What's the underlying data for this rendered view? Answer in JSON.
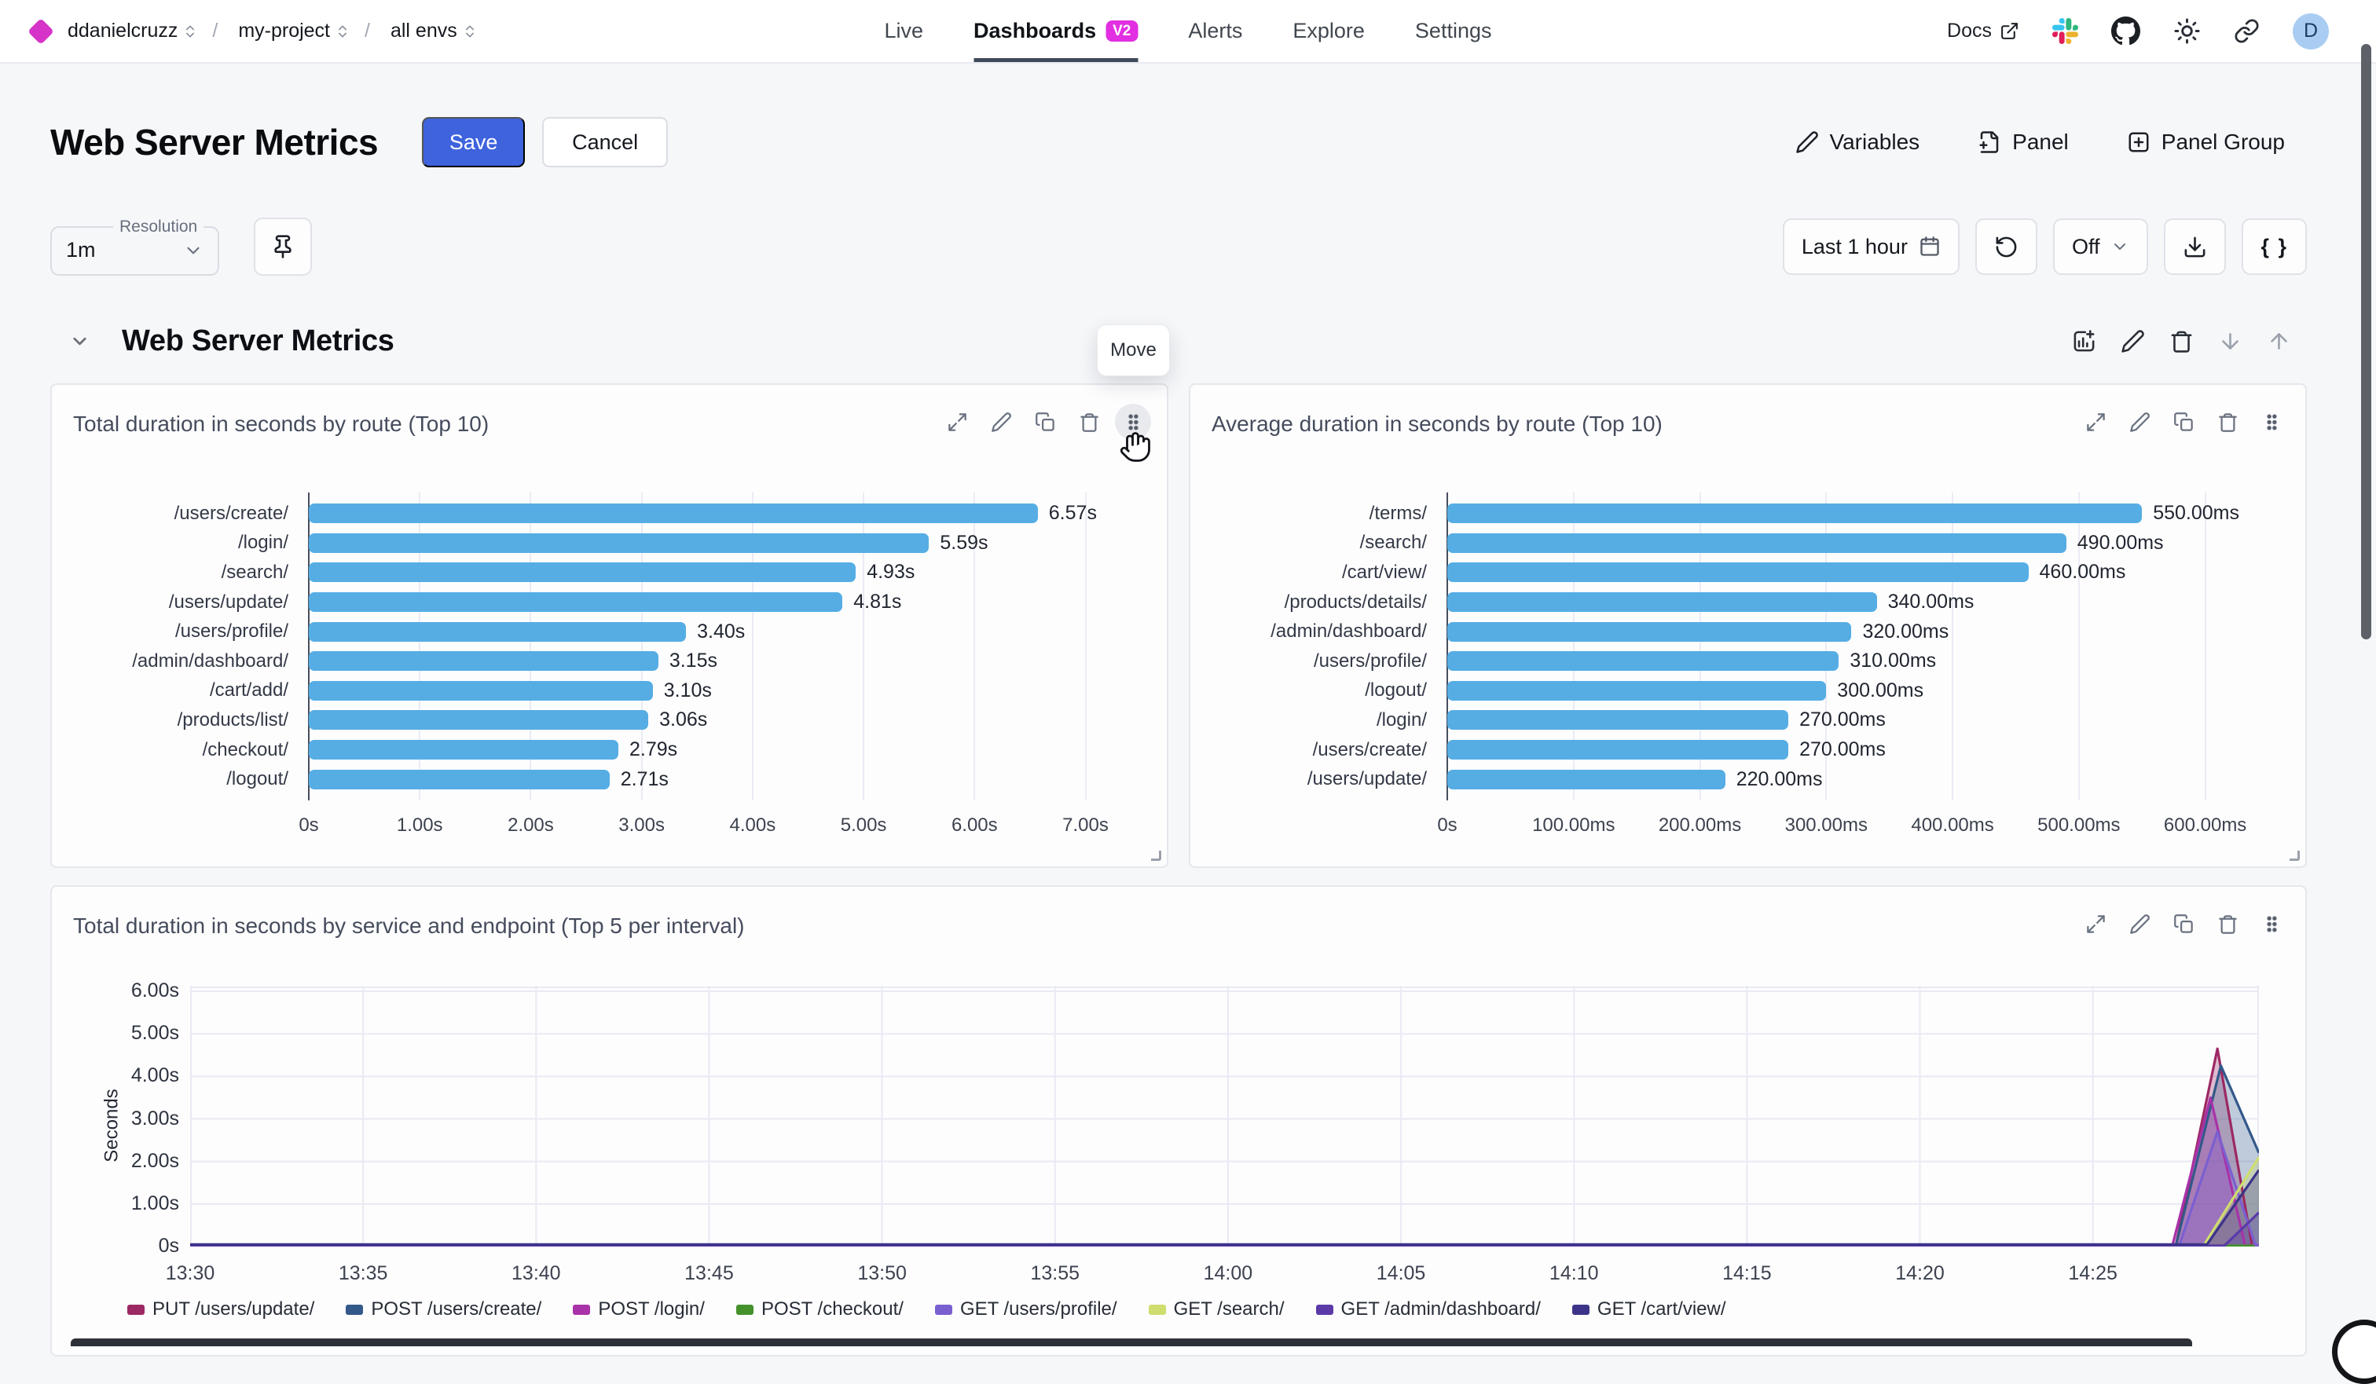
{
  "topbar": {
    "logo_color": "#D633C8",
    "breadcrumb": [
      {
        "label": "ddanielcruzz"
      },
      {
        "label": "my-project"
      },
      {
        "label": "all envs"
      }
    ],
    "nav": [
      {
        "label": "Live"
      },
      {
        "label": "Dashboards",
        "badge": "V2",
        "active": true
      },
      {
        "label": "Alerts"
      },
      {
        "label": "Explore"
      },
      {
        "label": "Settings"
      }
    ],
    "docs_label": "Docs",
    "icons": [
      "external-link-icon",
      "slack-icon",
      "github-icon",
      "brightness-icon",
      "link-icon"
    ],
    "avatar_initial": "D"
  },
  "header": {
    "title": "Web Server Metrics",
    "save_label": "Save",
    "cancel_label": "Cancel",
    "actions": [
      {
        "label": "Variables",
        "icon": "pencil-icon"
      },
      {
        "label": "Panel",
        "icon": "file-plus-icon"
      },
      {
        "label": "Panel Group",
        "icon": "square-plus-icon"
      }
    ]
  },
  "toolbar": {
    "resolution_label": "Resolution",
    "resolution_value": "1m",
    "time_range": "Last 1 hour",
    "auto_refresh": "Off",
    "braces_label": "{ }"
  },
  "section": {
    "title": "Web Server Metrics",
    "move_tooltip": "Move"
  },
  "colors": {
    "accent_blue": "#3E63DD",
    "magenta_badge": "#E12FE1",
    "bar_blue": "#55ADE4"
  },
  "chart_data": [
    {
      "type": "bar",
      "orientation": "horizontal",
      "title": "Total duration in seconds by route (Top 10)",
      "categories": [
        "/users/create/",
        "/login/",
        "/search/",
        "/users/update/",
        "/users/profile/",
        "/admin/dashboard/",
        "/cart/add/",
        "/products/list/",
        "/checkout/",
        "/logout/"
      ],
      "values": [
        6.57,
        5.59,
        4.93,
        4.81,
        3.4,
        3.15,
        3.1,
        3.06,
        2.79,
        2.71
      ],
      "value_labels": [
        "6.57s",
        "5.59s",
        "4.93s",
        "4.81s",
        "3.40s",
        "3.15s",
        "3.10s",
        "3.06s",
        "2.79s",
        "2.71s"
      ],
      "axis_max": 7.4,
      "ticks": [
        {
          "value": 0,
          "label": "0s"
        },
        {
          "value": 1,
          "label": "1.00s"
        },
        {
          "value": 2,
          "label": "2.00s"
        },
        {
          "value": 3,
          "label": "3.00s"
        },
        {
          "value": 4,
          "label": "4.00s"
        },
        {
          "value": 5,
          "label": "5.00s"
        },
        {
          "value": 6,
          "label": "6.00s"
        },
        {
          "value": 7,
          "label": "7.00s"
        }
      ],
      "bar_color": "#55ADE4"
    },
    {
      "type": "bar",
      "orientation": "horizontal",
      "title": "Average duration in seconds by route (Top 10)",
      "categories": [
        "/terms/",
        "/search/",
        "/cart/view/",
        "/products/details/",
        "/admin/dashboard/",
        "/users/profile/",
        "/logout/",
        "/login/",
        "/users/create/",
        "/users/update/"
      ],
      "values": [
        550,
        490,
        460,
        340,
        320,
        310,
        300,
        270,
        270,
        220
      ],
      "value_labels": [
        "550.00ms",
        "490.00ms",
        "460.00ms",
        "340.00ms",
        "320.00ms",
        "310.00ms",
        "300.00ms",
        "270.00ms",
        "270.00ms",
        "220.00ms"
      ],
      "axis_max": 650,
      "ticks": [
        {
          "value": 0,
          "label": "0s"
        },
        {
          "value": 100,
          "label": "100.00ms"
        },
        {
          "value": 200,
          "label": "200.00ms"
        },
        {
          "value": 300,
          "label": "300.00ms"
        },
        {
          "value": 400,
          "label": "400.00ms"
        },
        {
          "value": 500,
          "label": "500.00ms"
        },
        {
          "value": 600,
          "label": "600.00ms"
        }
      ],
      "bar_color": "#55ADE4"
    },
    {
      "type": "area",
      "title": "Total duration in seconds by service and endpoint (Top 5 per interval)",
      "ylabel": "Seconds",
      "y_max": 6.13,
      "y_ticks": [
        {
          "value": 0,
          "label": "0s"
        },
        {
          "value": 1,
          "label": "1.00s"
        },
        {
          "value": 2,
          "label": "2.00s"
        },
        {
          "value": 3,
          "label": "3.00s"
        },
        {
          "value": 4,
          "label": "4.00s"
        },
        {
          "value": 5,
          "label": "5.00s"
        },
        {
          "value": 6,
          "label": "6.00s"
        }
      ],
      "x_start": "13:30",
      "x_end_minutes": 59.8,
      "x_ticks": [
        {
          "minute": 0,
          "label": "13:30"
        },
        {
          "minute": 5,
          "label": "13:35"
        },
        {
          "minute": 10,
          "label": "13:40"
        },
        {
          "minute": 15,
          "label": "13:45"
        },
        {
          "minute": 20,
          "label": "13:50"
        },
        {
          "minute": 25,
          "label": "13:55"
        },
        {
          "minute": 30,
          "label": "14:00"
        },
        {
          "minute": 35,
          "label": "14:05"
        },
        {
          "minute": 40,
          "label": "14:10"
        },
        {
          "minute": 45,
          "label": "14:15"
        },
        {
          "minute": 50,
          "label": "14:20"
        },
        {
          "minute": 55,
          "label": "14:25"
        }
      ],
      "series": [
        {
          "name": "PUT /users/update/",
          "color": "#9C2963",
          "points": [
            [
              0,
              0.03
            ],
            [
              57.4,
              0.03
            ],
            [
              58.6,
              4.65
            ],
            [
              59.6,
              0.03
            ],
            [
              59.8,
              0.03
            ]
          ]
        },
        {
          "name": "POST /users/create/",
          "color": "#33588A",
          "points": [
            [
              0,
              0.03
            ],
            [
              57.4,
              0.03
            ],
            [
              58.7,
              4.25
            ],
            [
              59.8,
              2.2
            ]
          ]
        },
        {
          "name": "POST /login/",
          "color": "#A832A8",
          "points": [
            [
              0,
              0.03
            ],
            [
              57.3,
              0.03
            ],
            [
              58.4,
              3.5
            ],
            [
              59.4,
              0.03
            ],
            [
              59.8,
              0.03
            ]
          ]
        },
        {
          "name": "POST /checkout/",
          "color": "#44912C",
          "points": [
            [
              0,
              0.02
            ],
            [
              59.8,
              0.02
            ]
          ]
        },
        {
          "name": "GET /users/profile/",
          "color": "#7A5FD0",
          "points": [
            [
              0,
              0.03
            ],
            [
              57.5,
              0.03
            ],
            [
              58.6,
              2.7
            ],
            [
              59.7,
              0.03
            ],
            [
              59.8,
              0.03
            ]
          ]
        },
        {
          "name": "GET /search/",
          "color": "#CFDD6E",
          "points": [
            [
              0,
              0.02
            ],
            [
              58.2,
              0.02
            ],
            [
              59.8,
              2.1
            ]
          ]
        },
        {
          "name": "GET /admin/dashboard/",
          "color": "#5B3AA8",
          "points": [
            [
              0,
              0.02
            ],
            [
              58.8,
              0.02
            ],
            [
              59.8,
              0.8
            ]
          ]
        },
        {
          "name": "GET /cart/view/",
          "color": "#3B3488",
          "points": [
            [
              0,
              0.05
            ],
            [
              58.3,
              0.05
            ],
            [
              59.8,
              1.8
            ]
          ]
        }
      ]
    }
  ]
}
